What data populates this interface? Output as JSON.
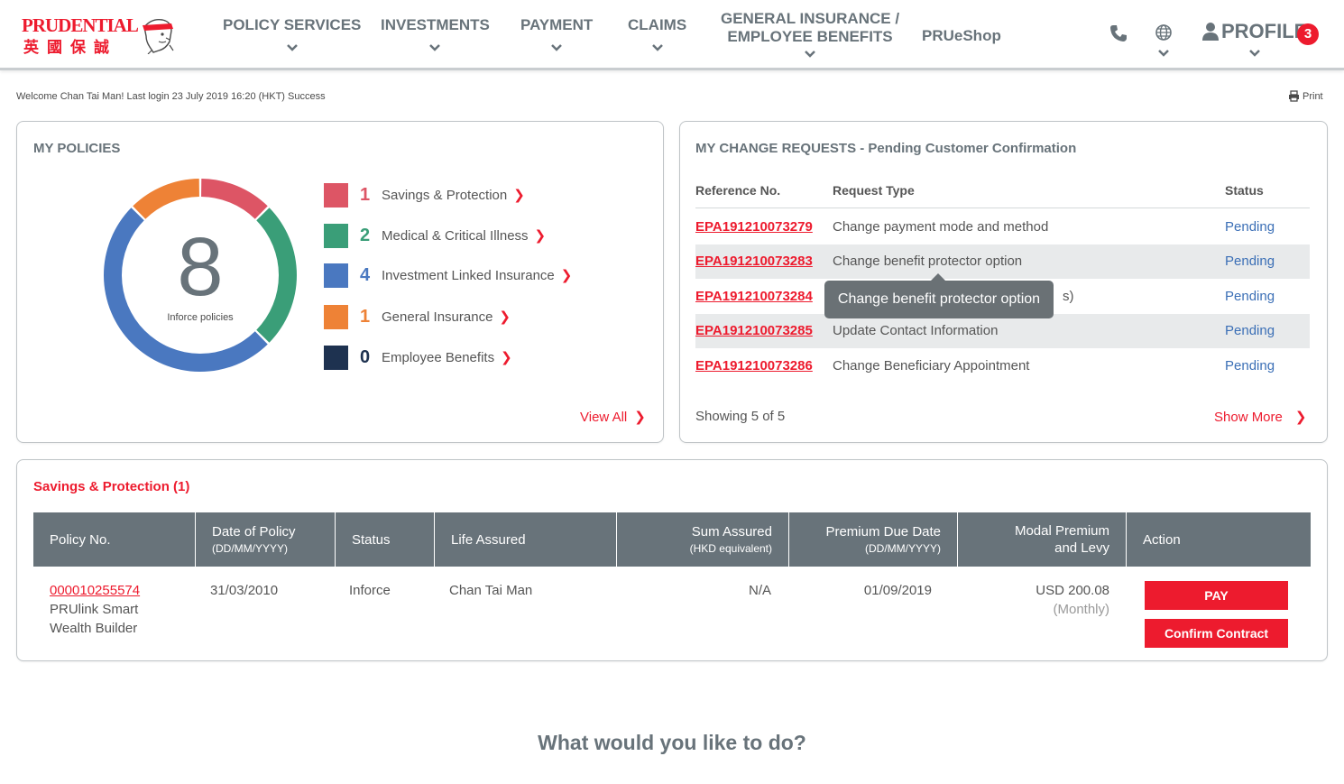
{
  "header": {
    "logo_text": "PRUDENTIAL",
    "logo_cn": "英國保誠",
    "nav": [
      {
        "line1": "POLICY SERVICES",
        "line2": ""
      },
      {
        "line1": "INVESTMENTS",
        "line2": ""
      },
      {
        "line1": "PAYMENT",
        "line2": ""
      },
      {
        "line1": "CLAIMS",
        "line2": ""
      },
      {
        "line1": "GENERAL INSURANCE /",
        "line2": "EMPLOYEE BENEFITS"
      },
      {
        "line1": "PRUeShop",
        "line2": ""
      }
    ],
    "profile_label": "PROFILE",
    "notification_count": "3",
    "icons": [
      "phone-icon",
      "globe-icon",
      "user-icon"
    ]
  },
  "welcome_text": "Welcome Chan Tai Man! Last login 23 July 2019 16:20 (HKT) Success",
  "print_label": "Print",
  "my_policies": {
    "title": "MY POLICIES",
    "total": "8",
    "total_label": "Inforce policies",
    "categories": [
      {
        "count": "1",
        "label": "Savings & Protection",
        "color": "#dd5565"
      },
      {
        "count": "2",
        "label": "Medical & Critical Illness",
        "color": "#3a9e78"
      },
      {
        "count": "4",
        "label": "Investment Linked Insurance",
        "color": "#4a78c0"
      },
      {
        "count": "1",
        "label": "General Insurance",
        "color": "#ee8236"
      },
      {
        "count": "0",
        "label": "Employee Benefits",
        "color": "#1e3250"
      }
    ],
    "view_all": "View All"
  },
  "change_requests": {
    "title": "MY CHANGE REQUESTS - Pending Customer Confirmation",
    "columns": [
      "Reference No.",
      "Request Type",
      "Status"
    ],
    "rows": [
      {
        "ref": "EPA191210073279",
        "type": "Change payment mode and method",
        "status": "Pending"
      },
      {
        "ref": "EPA191210073283",
        "type": "Change benefit protector option",
        "status": "Pending"
      },
      {
        "ref": "EPA191210073284",
        "type": "",
        "type_tail": "s)",
        "status": "Pending"
      },
      {
        "ref": "EPA191210073285",
        "type": "Update Contact Information",
        "status": "Pending"
      },
      {
        "ref": "EPA191210073286",
        "type": "Change Beneficiary Appointment",
        "status": "Pending"
      }
    ],
    "tooltip": "Change benefit protector option",
    "showing": "Showing 5 of 5",
    "show_more": "Show More"
  },
  "savings_table": {
    "title": "Savings & Protection (1)",
    "columns": [
      {
        "label": "Policy No.",
        "sub": ""
      },
      {
        "label": "Date of Policy",
        "sub": "(DD/MM/YYYY)"
      },
      {
        "label": "Status",
        "sub": ""
      },
      {
        "label": "Life Assured",
        "sub": ""
      },
      {
        "label": "Sum Assured",
        "sub": "(HKD equivalent)"
      },
      {
        "label": "Premium Due Date",
        "sub": "(DD/MM/YYYY)"
      },
      {
        "label": "Modal Premium",
        "sub": "and Levy"
      },
      {
        "label": "Action",
        "sub": ""
      }
    ],
    "row": {
      "policy_no": "000010255574",
      "product_line1": "PRUlink Smart",
      "product_line2": "Wealth Builder",
      "date": "31/03/2010",
      "status": "Inforce",
      "life_assured": "Chan Tai Man",
      "sum_assured": "N/A",
      "due_date": "01/09/2019",
      "premium": "USD 200.08",
      "frequency": "(Monthly)",
      "pay_button": "PAY",
      "confirm_button": "Confirm Contract"
    }
  },
  "bottom_title": "What would you like to do?"
}
